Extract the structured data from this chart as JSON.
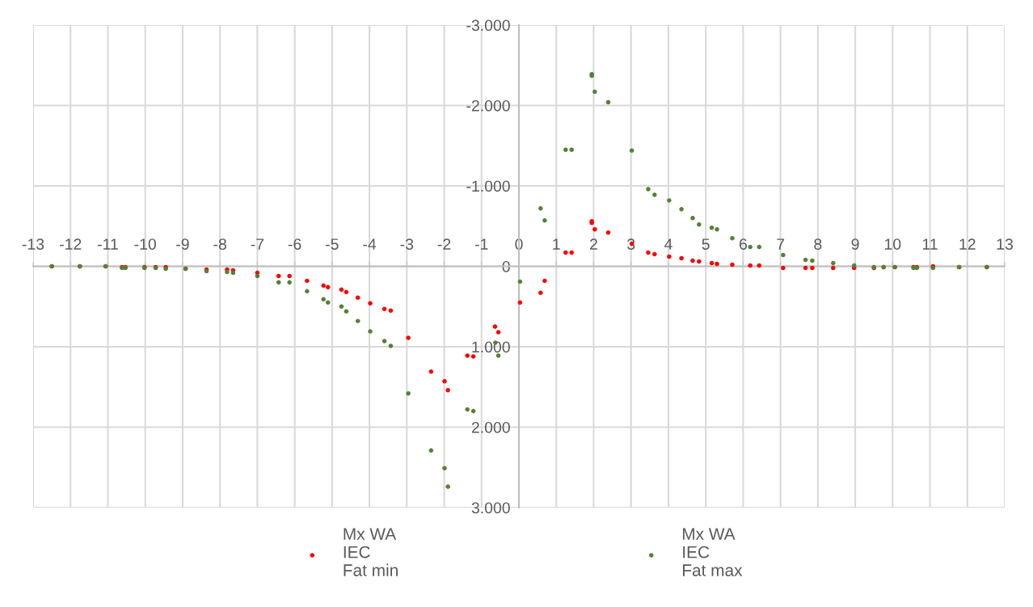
{
  "chart_data": {
    "type": "scatter",
    "xlim": [
      -13,
      13
    ],
    "ylim": [
      3000,
      -3000
    ],
    "xticks": [
      -13,
      -12,
      -11,
      -10,
      -9,
      -8,
      -7,
      -6,
      -5,
      -4,
      -3,
      -2,
      -1,
      0,
      1,
      2,
      3,
      4,
      5,
      6,
      7,
      8,
      9,
      10,
      11,
      12,
      13
    ],
    "yticks": [
      {
        "value": -3000,
        "label": "-3.000"
      },
      {
        "value": -2000,
        "label": "-2.000"
      },
      {
        "value": -1000,
        "label": "-1.000"
      },
      0,
      {
        "value": 1000,
        "label": "1.000"
      },
      {
        "value": 2000,
        "label": "2.000"
      },
      {
        "value": 3000,
        "label": "3.000"
      }
    ],
    "grid": true,
    "legend": "bottom",
    "marker": "circle",
    "series": [
      {
        "name": "Mx WA\nIEC\nFat min",
        "color": "#ff0000",
        "x": [
          -12.5,
          -11.75,
          -11.06,
          -10.62,
          -10.53,
          -10.02,
          -9.72,
          -9.45,
          -8.92,
          -8.36,
          -7.81,
          -7.65,
          -7.0,
          -6.43,
          -6.14,
          -5.67,
          -5.23,
          -5.11,
          -4.75,
          -4.62,
          -4.31,
          -3.98,
          -3.6,
          -3.43,
          -2.96,
          -2.35,
          -1.99,
          -1.9,
          -1.38,
          -1.22,
          -0.64,
          -0.55,
          0.03,
          0.58,
          0.69,
          1.25,
          1.41,
          1.95,
          1.95,
          2.03,
          2.39,
          3.02,
          3.46,
          3.63,
          4.02,
          4.35,
          4.65,
          4.82,
          5.16,
          5.3,
          5.71,
          6.19,
          6.43,
          7.07,
          7.67,
          7.85,
          8.41,
          8.97,
          9.5,
          9.76,
          10.06,
          10.56,
          10.65,
          11.08,
          11.78,
          12.52
        ],
        "values": [
          0,
          0,
          0,
          10,
          10,
          10,
          10,
          10,
          30,
          40,
          40,
          50,
          80,
          120,
          120,
          180,
          240,
          260,
          290,
          320,
          390,
          460,
          530,
          550,
          890,
          1310,
          1430,
          1540,
          1110,
          1120,
          750,
          820,
          450,
          330,
          180,
          -170,
          -170,
          -540,
          -560,
          -460,
          -420,
          -280,
          -170,
          -150,
          -120,
          -100,
          -70,
          -60,
          -40,
          -30,
          -20,
          -10,
          -10,
          20,
          20,
          20,
          20,
          20,
          20,
          10,
          10,
          10,
          10,
          0,
          10,
          10
        ]
      },
      {
        "name": "Mx WA\nIEC\nFat max",
        "color": "#548235",
        "x": [
          -12.5,
          -11.75,
          -11.06,
          -10.62,
          -10.53,
          -10.02,
          -9.72,
          -9.45,
          -8.92,
          -8.36,
          -7.81,
          -7.65,
          -7.0,
          -6.43,
          -6.14,
          -5.67,
          -5.23,
          -5.11,
          -4.75,
          -4.62,
          -4.31,
          -3.98,
          -3.6,
          -3.43,
          -2.96,
          -2.35,
          -1.99,
          -1.9,
          -1.38,
          -1.22,
          -0.63,
          -0.55,
          0.03,
          0.58,
          0.69,
          1.25,
          1.41,
          1.95,
          1.95,
          2.03,
          2.39,
          3.02,
          3.46,
          3.63,
          4.02,
          4.35,
          4.65,
          4.82,
          5.16,
          5.3,
          5.71,
          6.19,
          6.43,
          7.07,
          7.67,
          7.85,
          8.41,
          8.97,
          9.5,
          9.76,
          10.06,
          10.56,
          10.65,
          11.08,
          11.78,
          12.52
        ],
        "values": [
          0,
          0,
          0,
          20,
          20,
          20,
          20,
          30,
          30,
          60,
          70,
          80,
          120,
          200,
          200,
          310,
          410,
          450,
          500,
          560,
          680,
          810,
          930,
          990,
          1580,
          2290,
          2510,
          2740,
          1780,
          1800,
          950,
          1110,
          190,
          -720,
          -570,
          -1450,
          -1450,
          -2390,
          -2370,
          -2170,
          -2040,
          -1440,
          -960,
          -890,
          -820,
          -710,
          -600,
          -520,
          -480,
          -460,
          -350,
          -240,
          -240,
          -140,
          -80,
          -70,
          -40,
          -10,
          10,
          10,
          10,
          20,
          20,
          20,
          10,
          10
        ]
      }
    ]
  }
}
